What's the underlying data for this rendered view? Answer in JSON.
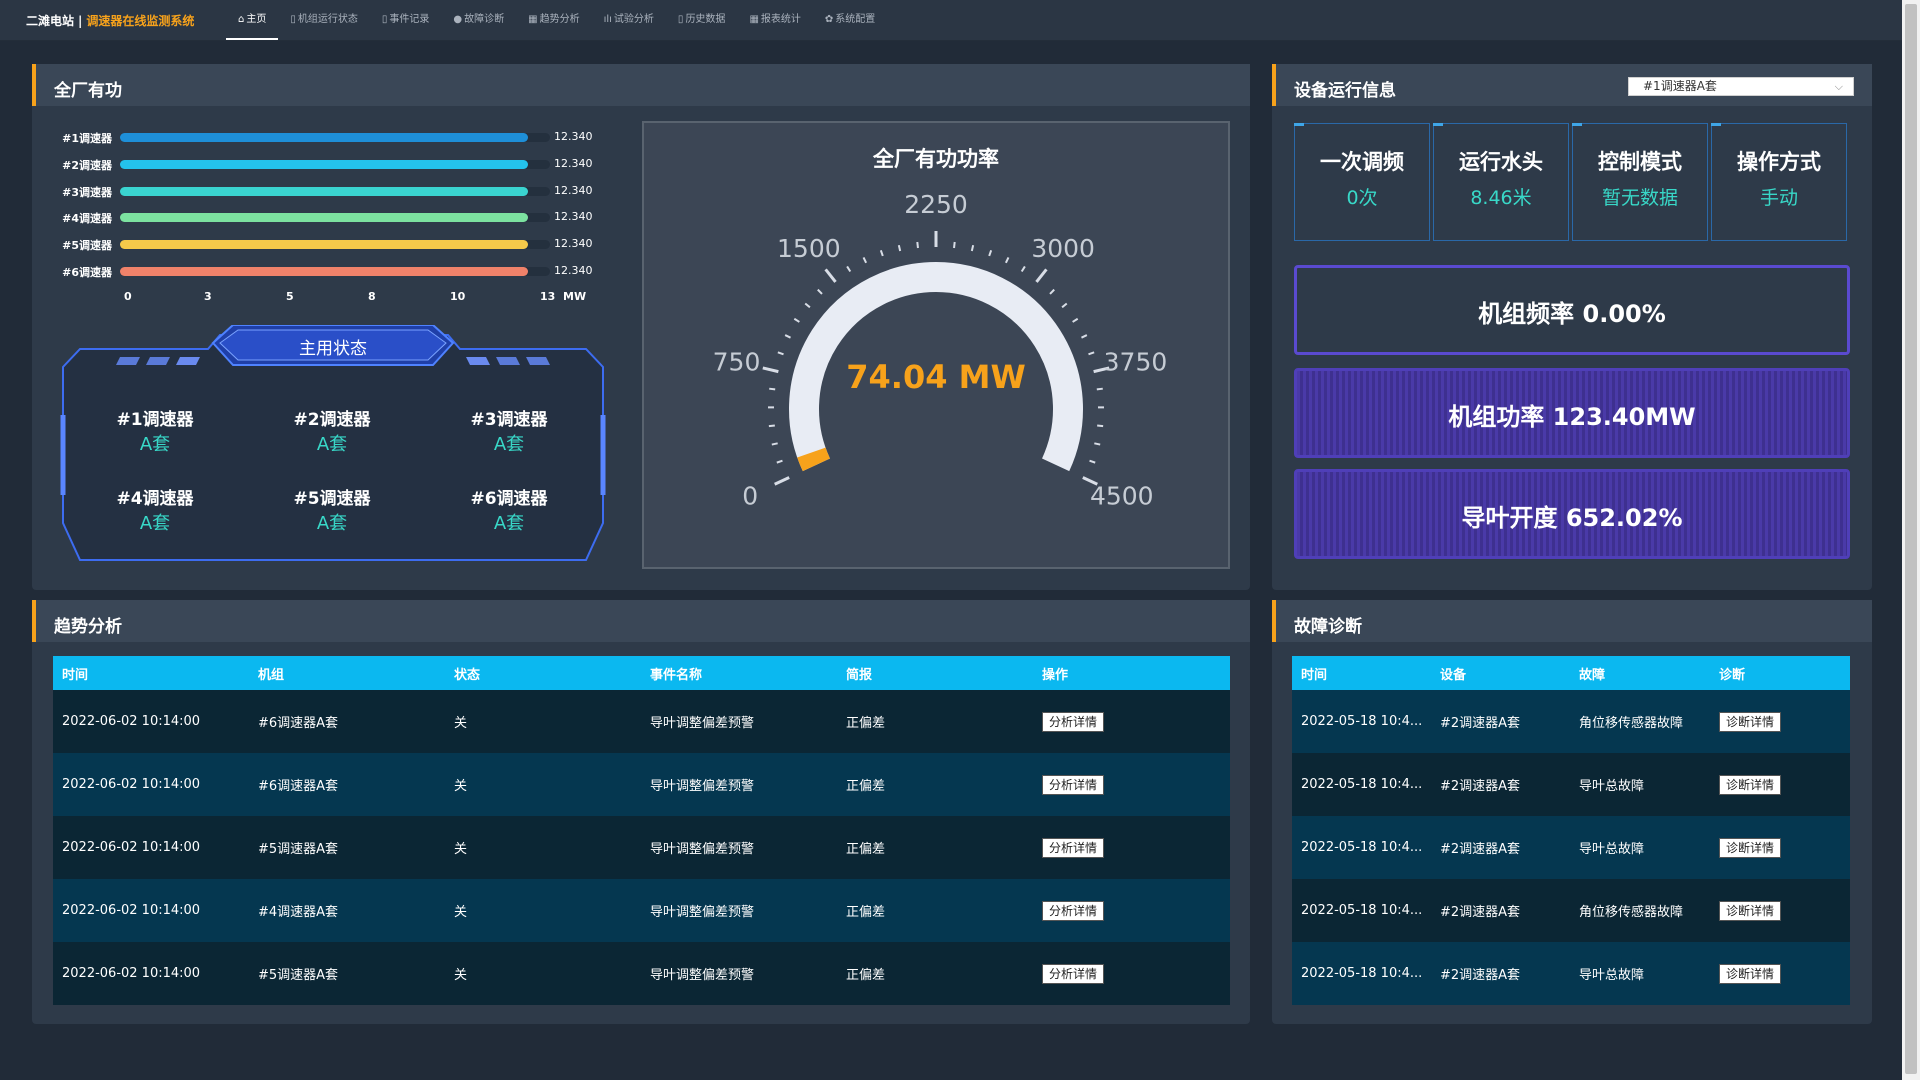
{
  "header": {
    "station": "二滩电站",
    "separator": "|",
    "system_name": "调速器在线监测系统",
    "nav": [
      {
        "label": "主页",
        "icon": "home-icon",
        "glyph": "⌂"
      },
      {
        "label": "机组运行状态",
        "icon": "doc-icon",
        "glyph": "▯"
      },
      {
        "label": "事件记录",
        "icon": "doc-icon",
        "glyph": "▯"
      },
      {
        "label": "故障诊断",
        "icon": "gear-icon",
        "glyph": "●"
      },
      {
        "label": "趋势分析",
        "icon": "grid-icon",
        "glyph": "▦"
      },
      {
        "label": "试验分析",
        "icon": "bar-chart-icon",
        "glyph": "ılı"
      },
      {
        "label": "历史数据",
        "icon": "doc-icon",
        "glyph": "▯"
      },
      {
        "label": "报表统计",
        "icon": "table-icon",
        "glyph": "▦"
      },
      {
        "label": "系统配置",
        "icon": "settings-icon",
        "glyph": "✿"
      }
    ]
  },
  "active_power": {
    "title": "全厂有功",
    "bars": [
      {
        "label": "#1调速器",
        "value": 12.34,
        "value_text": "12.340",
        "color": "#1e8fd8"
      },
      {
        "label": "#2调速器",
        "value": 12.34,
        "value_text": "12.340",
        "color": "#24c2ec"
      },
      {
        "label": "#3调速器",
        "value": 12.34,
        "value_text": "12.340",
        "color": "#3ad4d0"
      },
      {
        "label": "#4调速器",
        "value": 12.34,
        "value_text": "12.340",
        "color": "#7ce2a0"
      },
      {
        "label": "#5调速器",
        "value": 12.34,
        "value_text": "12.340",
        "color": "#f5c94a"
      },
      {
        "label": "#6调速器",
        "value": 12.34,
        "value_text": "12.340",
        "color": "#f0826a"
      }
    ],
    "axis": {
      "ticks": [
        "0",
        "3",
        "5",
        "8",
        "10",
        "13"
      ],
      "max": 13,
      "unit": "MW"
    },
    "status_title": "主用状态",
    "status": [
      {
        "name": "#1调速器",
        "value": "A套"
      },
      {
        "name": "#2调速器",
        "value": "A套"
      },
      {
        "name": "#3调速器",
        "value": "A套"
      },
      {
        "name": "#4调速器",
        "value": "A套"
      },
      {
        "name": "#5调速器",
        "value": "A套"
      },
      {
        "name": "#6调速器",
        "value": "A套"
      }
    ],
    "gauge": {
      "title": "全厂有功功率",
      "value_text": "74.04 MW",
      "value": 74.04,
      "min": 0,
      "max": 4500,
      "labels": [
        "0",
        "750",
        "1500",
        "2250",
        "3000",
        "3750",
        "4500"
      ],
      "fill_color": "#f7a21b",
      "track_color": "#e8ecf4"
    }
  },
  "device_info": {
    "title": "设备运行信息",
    "selected_unit": "#1调速器A套",
    "cards": [
      {
        "label": "一次调频",
        "value": "0次"
      },
      {
        "label": "运行水头",
        "value": "8.46米"
      },
      {
        "label": "控制模式",
        "value": "暂无数据"
      },
      {
        "label": "操作方式",
        "value": "手动"
      }
    ],
    "metrics": [
      {
        "text": "机组频率 0.00%"
      },
      {
        "text": "机组功率 123.40MW"
      },
      {
        "text": "导叶开度 652.02%"
      }
    ]
  },
  "trend": {
    "title": "趋势分析",
    "columns": [
      "时间",
      "机组",
      "状态",
      "事件名称",
      "简报",
      "操作"
    ],
    "rows": [
      {
        "time": "2022-06-02 10:14:00",
        "unit": "#6调速器A套",
        "state": "关",
        "event": "导叶调整偏差预警",
        "brief": "正偏差",
        "action": "分析详情"
      },
      {
        "time": "2022-06-02 10:14:00",
        "unit": "#6调速器A套",
        "state": "关",
        "event": "导叶调整偏差预警",
        "brief": "正偏差",
        "action": "分析详情"
      },
      {
        "time": "2022-06-02 10:14:00",
        "unit": "#5调速器A套",
        "state": "关",
        "event": "导叶调整偏差预警",
        "brief": "正偏差",
        "action": "分析详情"
      },
      {
        "time": "2022-06-02 10:14:00",
        "unit": "#4调速器A套",
        "state": "关",
        "event": "导叶调整偏差预警",
        "brief": "正偏差",
        "action": "分析详情"
      },
      {
        "time": "2022-06-02 10:14:00",
        "unit": "#5调速器A套",
        "state": "关",
        "event": "导叶调整偏差预警",
        "brief": "正偏差",
        "action": "分析详情"
      }
    ]
  },
  "fault": {
    "title": "故障诊断",
    "columns": [
      "时间",
      "设备",
      "故障",
      "诊断"
    ],
    "rows": [
      {
        "time": "2022-05-18 10:4...",
        "device": "#2调速器A套",
        "fault": "角位移传感器故障",
        "action": "诊断详情"
      },
      {
        "time": "2022-05-18 10:4...",
        "device": "#2调速器A套",
        "fault": "导叶总故障",
        "action": "诊断详情"
      },
      {
        "time": "2022-05-18 10:4...",
        "device": "#2调速器A套",
        "fault": "导叶总故障",
        "action": "诊断详情"
      },
      {
        "time": "2022-05-18 10:4...",
        "device": "#2调速器A套",
        "fault": "角位移传感器故障",
        "action": "诊断详情"
      },
      {
        "time": "2022-05-18 10:4...",
        "device": "#2调速器A套",
        "fault": "导叶总故障",
        "action": "诊断详情"
      }
    ]
  }
}
